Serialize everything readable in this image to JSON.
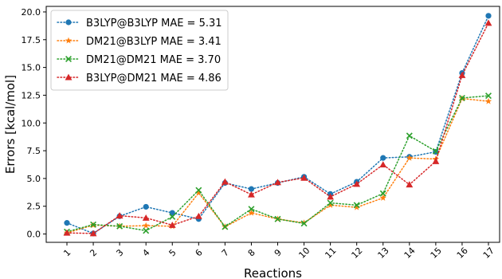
{
  "chart_data": {
    "type": "line",
    "xlabel": "Reactions",
    "ylabel": "Errors [kcal/mol]",
    "categories": [
      "1",
      "2",
      "3",
      "4",
      "5",
      "6",
      "7",
      "8",
      "9",
      "10",
      "11",
      "12",
      "13",
      "14",
      "15",
      "16",
      "17"
    ],
    "ylim": [
      -0.75,
      20.5
    ],
    "yticks": [
      0.0,
      2.5,
      5.0,
      7.5,
      10.0,
      12.5,
      15.0,
      17.5,
      20.0
    ],
    "ytick_labels": [
      "0.0",
      "2.5",
      "5.0",
      "7.5",
      "10.0",
      "12.5",
      "15.0",
      "17.5",
      "20.0"
    ],
    "grid": false,
    "legend_position": "top-left",
    "series": [
      {
        "name": "B3LYP@B3LYP MAE = 5.31",
        "color": "#1f77b4",
        "marker": "circle",
        "values": [
          1.0,
          0.05,
          1.6,
          2.45,
          1.9,
          1.35,
          4.6,
          4.05,
          4.6,
          5.15,
          3.6,
          4.7,
          6.85,
          6.95,
          7.4,
          14.5,
          19.65
        ]
      },
      {
        "name": "DM21@B3LYP MAE = 3.41",
        "color": "#ff7f0e",
        "marker": "star",
        "values": [
          0.1,
          0.8,
          0.7,
          0.75,
          0.7,
          3.7,
          0.65,
          1.9,
          1.35,
          1.0,
          2.6,
          2.4,
          3.25,
          6.85,
          6.75,
          12.2,
          11.95
        ]
      },
      {
        "name": "DM21@DM21 MAE = 3.70",
        "color": "#2ca02c",
        "marker": "x",
        "values": [
          0.2,
          0.85,
          0.7,
          0.3,
          1.55,
          3.95,
          0.65,
          2.25,
          1.35,
          0.95,
          2.8,
          2.6,
          3.65,
          8.85,
          7.45,
          12.25,
          12.45
        ]
      },
      {
        "name": "B3LYP@DM21 MAE = 4.86",
        "color": "#d62728",
        "marker": "triangle",
        "values": [
          0.1,
          0.05,
          1.65,
          1.45,
          0.8,
          1.6,
          4.7,
          3.55,
          4.65,
          5.05,
          3.35,
          4.5,
          6.25,
          4.45,
          6.55,
          14.3,
          19.0
        ]
      }
    ]
  }
}
